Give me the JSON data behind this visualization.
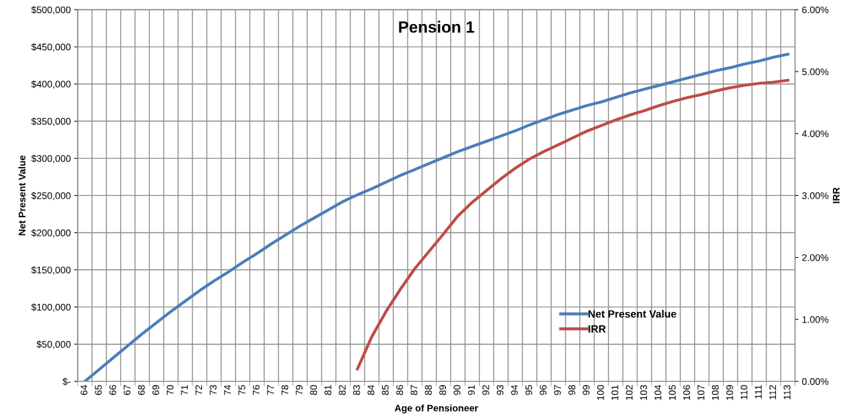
{
  "chart_data": {
    "type": "line",
    "title": "Pension 1",
    "xlabel": "Age of Pensioneer",
    "ylabel": "Net Present Value",
    "y2label": "IRR",
    "categories": [
      "64",
      "65",
      "66",
      "67",
      "68",
      "69",
      "70",
      "71",
      "72",
      "73",
      "74",
      "75",
      "76",
      "77",
      "78",
      "79",
      "80",
      "81",
      "82",
      "83",
      "84",
      "85",
      "86",
      "87",
      "88",
      "89",
      "90",
      "91",
      "92",
      "93",
      "94",
      "95",
      "96",
      "97",
      "98",
      "99",
      "100",
      "101",
      "102",
      "103",
      "104",
      "105",
      "106",
      "107",
      "108",
      "109",
      "110",
      "111",
      "112",
      "113"
    ],
    "series": [
      {
        "name": "Net Present Value",
        "color": "#4a7ebb",
        "values": [
          0,
          16000,
          32000,
          48000,
          64000,
          79000,
          94000,
          108000,
          122000,
          135000,
          147000,
          160000,
          172000,
          185000,
          197000,
          209000,
          220000,
          231000,
          242000,
          251000,
          259000,
          268000,
          277000,
          285000,
          293000,
          301000,
          309000,
          316000,
          323000,
          330000,
          337000,
          345000,
          352000,
          359000,
          365000,
          371000,
          376000,
          382000,
          388000,
          393000,
          398000,
          403000,
          408000,
          413000,
          418000,
          422000,
          427000,
          431000,
          436000,
          440000
        ]
      },
      {
        "name": "IRR",
        "color": "#be4b48",
        "axis": "y2",
        "values": [
          null,
          null,
          null,
          null,
          null,
          null,
          null,
          null,
          null,
          null,
          null,
          null,
          null,
          null,
          null,
          null,
          null,
          null,
          null,
          0.2,
          0.72,
          1.13,
          1.49,
          1.82,
          2.1,
          2.38,
          2.67,
          2.89,
          3.08,
          3.27,
          3.44,
          3.59,
          3.71,
          3.82,
          3.93,
          4.04,
          4.13,
          4.22,
          4.3,
          4.37,
          4.45,
          4.52,
          4.58,
          4.63,
          4.69,
          4.74,
          4.78,
          4.81,
          4.83,
          4.86
        ]
      }
    ],
    "ylim": [
      0,
      500000
    ],
    "yticks": [
      {
        "value": 0,
        "label": "$-"
      },
      {
        "value": 50000,
        "label": "$50,000"
      },
      {
        "value": 100000,
        "label": "$100,000"
      },
      {
        "value": 150000,
        "label": "$150,000"
      },
      {
        "value": 200000,
        "label": "$200,000"
      },
      {
        "value": 250000,
        "label": "$250,000"
      },
      {
        "value": 300000,
        "label": "$300,000"
      },
      {
        "value": 350000,
        "label": "$350,000"
      },
      {
        "value": 400000,
        "label": "$400,000"
      },
      {
        "value": 450000,
        "label": "$450,000"
      },
      {
        "value": 500000,
        "label": "$500,000"
      }
    ],
    "y2lim": [
      0,
      6
    ],
    "y2ticks": [
      {
        "value": 0,
        "label": "0.00%"
      },
      {
        "value": 1,
        "label": "1.00%"
      },
      {
        "value": 2,
        "label": "2.00%"
      },
      {
        "value": 3,
        "label": "3.00%"
      },
      {
        "value": 4,
        "label": "4.00%"
      },
      {
        "value": 5,
        "label": "5.00%"
      },
      {
        "value": 6,
        "label": "6.00%"
      }
    ],
    "grid": true,
    "legend": "bottom right",
    "marker": "none",
    "line_style": "solid"
  }
}
